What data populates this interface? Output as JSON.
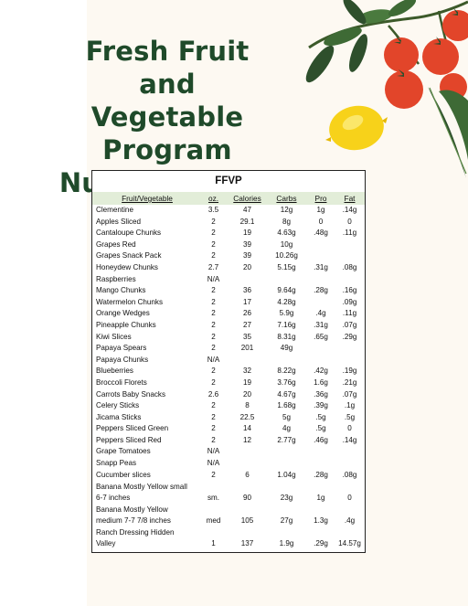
{
  "page": {
    "title_lines": [
      "Fresh Fruit and",
      "Vegetable",
      "Program",
      "Nutriton Facts"
    ]
  },
  "decoration": {
    "icons": [
      "tomato-vine-icon",
      "lemon-icon",
      "leaf-icon"
    ],
    "colors": {
      "tomato": "#e2452a",
      "leaf": "#2e4f2c",
      "lemon": "#f7d21a",
      "title": "#1f4a2a",
      "header_bg": "#e2edd8",
      "cream_bg": "#fdf9f2"
    }
  },
  "table": {
    "title": "FFVP",
    "headers": {
      "name": "Fruit/Vegetable",
      "oz": "oz.",
      "calories": "Calories",
      "carbs": "Carbs",
      "pro": "Pro",
      "fat": "Fat"
    },
    "rows": [
      {
        "name": "Clementine",
        "oz": "3.5",
        "calories": "47",
        "carbs": "12g",
        "pro": "1g",
        "fat": ".14g"
      },
      {
        "name": "Apples Sliced",
        "oz": "2",
        "calories": "29.1",
        "carbs": "8g",
        "pro": "0",
        "fat": "0"
      },
      {
        "name": "Cantaloupe Chunks",
        "oz": "2",
        "calories": "19",
        "carbs": "4.63g",
        "pro": ".48g",
        "fat": ".11g"
      },
      {
        "name": "Grapes Red",
        "oz": "2",
        "calories": "39",
        "carbs": "10g",
        "pro": "",
        "fat": ""
      },
      {
        "name": "Grapes Snack Pack",
        "oz": "2",
        "calories": "39",
        "carbs": "10.26g",
        "pro": "",
        "fat": ""
      },
      {
        "name": "Honeydew Chunks",
        "oz": "2.7",
        "calories": "20",
        "carbs": "5.15g",
        "pro": ".31g",
        "fat": ".08g"
      },
      {
        "name": "Raspberries",
        "oz": "N/A",
        "calories": "",
        "carbs": "",
        "pro": "",
        "fat": ""
      },
      {
        "name": "Mango Chunks",
        "oz": "2",
        "calories": "36",
        "carbs": "9.64g",
        "pro": ".28g",
        "fat": ".16g"
      },
      {
        "name": "Watermelon Chunks",
        "oz": "2",
        "calories": "17",
        "carbs": "4.28g",
        "pro": "",
        "fat": ".09g"
      },
      {
        "name": "Orange Wedges",
        "oz": "2",
        "calories": "26",
        "carbs": "5.9g",
        "pro": ".4g",
        "fat": ".11g"
      },
      {
        "name": "Pineapple Chunks",
        "oz": "2",
        "calories": "27",
        "carbs": "7.16g",
        "pro": ".31g",
        "fat": ".07g"
      },
      {
        "name": "Kiwi Slices",
        "oz": "2",
        "calories": "35",
        "carbs": "8.31g",
        "pro": ".65g",
        "fat": ".29g"
      },
      {
        "name": "Papaya Spears",
        "oz": "2",
        "calories": "201",
        "carbs": "49g",
        "pro": "",
        "fat": ""
      },
      {
        "name": "Papaya Chunks",
        "oz": "N/A",
        "calories": "",
        "carbs": "",
        "pro": "",
        "fat": ""
      },
      {
        "name": "Blueberries",
        "oz": "2",
        "calories": "32",
        "carbs": "8.22g",
        "pro": ".42g",
        "fat": ".19g"
      },
      {
        "name": "Broccoli Florets",
        "oz": "2",
        "calories": "19",
        "carbs": "3.76g",
        "pro": "1.6g",
        "fat": ".21g"
      },
      {
        "name": "Carrots Baby Snacks",
        "oz": "2.6",
        "calories": "20",
        "carbs": "4.67g",
        "pro": ".36g",
        "fat": ".07g"
      },
      {
        "name": "Celery Sticks",
        "oz": "2",
        "calories": "8",
        "carbs": "1.68g",
        "pro": ".39g",
        "fat": ".1g"
      },
      {
        "name": "Jicama Sticks",
        "oz": "2",
        "calories": "22.5",
        "carbs": "5g",
        "pro": ".5g",
        "fat": ".5g"
      },
      {
        "name": "Peppers Sliced Green",
        "oz": "2",
        "calories": "14",
        "carbs": "4g",
        "pro": ".5g",
        "fat": "0"
      },
      {
        "name": "Peppers Sliced Red",
        "oz": "2",
        "calories": "12",
        "carbs": "2.77g",
        "pro": ".46g",
        "fat": ".14g"
      },
      {
        "name": "Grape Tomatoes",
        "oz": "N/A",
        "calories": "",
        "carbs": "",
        "pro": "",
        "fat": ""
      },
      {
        "name": "Snapp Peas",
        "oz": "N/A",
        "calories": "",
        "carbs": "",
        "pro": "",
        "fat": ""
      },
      {
        "name": "Cucumber slices",
        "oz": "2",
        "calories": "6",
        "carbs": "1.04g",
        "pro": ".28g",
        "fat": ".08g"
      },
      {
        "name_lines": [
          "Banana Mostly Yellow small",
          "6-7 inches"
        ],
        "oz": "sm.",
        "calories": "90",
        "carbs": "23g",
        "pro": "1g",
        "fat": "0"
      },
      {
        "name_lines": [
          "Banana Mostly Yellow",
          "medium 7-7 7/8 inches"
        ],
        "oz": "med",
        "calories": "105",
        "carbs": "27g",
        "pro": "1.3g",
        "fat": ".4g"
      },
      {
        "name_lines": [
          "Ranch Dressing Hidden",
          "Valley"
        ],
        "oz": "1",
        "calories": "137",
        "carbs": "1.9g",
        "pro": ".29g",
        "fat": "14.57g"
      }
    ]
  }
}
